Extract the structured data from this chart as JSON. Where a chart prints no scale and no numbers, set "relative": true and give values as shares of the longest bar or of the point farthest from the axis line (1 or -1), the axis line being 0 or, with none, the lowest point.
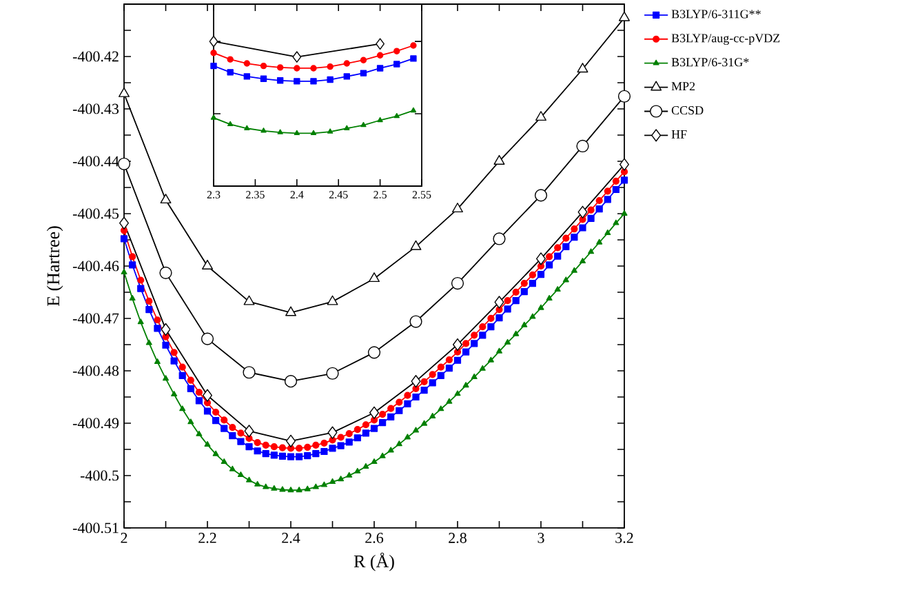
{
  "chart_data": [
    {
      "type": "line",
      "xlabel": "R (Å)",
      "ylabel": "E (Hartree)",
      "xlim": [
        2,
        3.2
      ],
      "ylim": [
        -400.51,
        -400.41
      ],
      "xticks": [
        2,
        {
          "value": 2.1,
          "label": null
        },
        2.2,
        {
          "value": 2.3,
          "label": null
        },
        2.4,
        {
          "value": 2.5,
          "label": null
        },
        2.6,
        {
          "value": 2.7,
          "label": null
        },
        2.8,
        {
          "value": 2.9,
          "label": null
        },
        3,
        {
          "value": 3.1,
          "label": null
        },
        3.2
      ],
      "yticks": [
        -400.51,
        {
          "value": -400.505,
          "label": null
        },
        -400.5,
        {
          "value": -400.495,
          "label": null
        },
        -400.49,
        {
          "value": -400.485,
          "label": null
        },
        -400.48,
        {
          "value": -400.475,
          "label": null
        },
        -400.47,
        {
          "value": -400.465,
          "label": null
        },
        -400.46,
        {
          "value": -400.455,
          "label": null
        },
        -400.45,
        {
          "value": -400.445,
          "label": null
        },
        -400.44,
        {
          "value": -400.435,
          "label": null
        },
        -400.43,
        {
          "value": -400.425,
          "label": null
        },
        -400.42,
        {
          "value": -400.415,
          "label": null
        }
      ],
      "legend": "top right",
      "grid": false,
      "line_style": "solid",
      "x": [
        2.0,
        2.02,
        2.04,
        2.06,
        2.08,
        2.1,
        2.12,
        2.14,
        2.16,
        2.18,
        2.2,
        2.22,
        2.24,
        2.26,
        2.28,
        2.3,
        2.32,
        2.34,
        2.36,
        2.38,
        2.4,
        2.42,
        2.44,
        2.46,
        2.48,
        2.5,
        2.52,
        2.54,
        2.56,
        2.58,
        2.6,
        2.62,
        2.64,
        2.66,
        2.68,
        2.7,
        2.72,
        2.74,
        2.76,
        2.78,
        2.8,
        2.82,
        2.84,
        2.86,
        2.88,
        2.9,
        2.92,
        2.94,
        2.96,
        2.98,
        3.0,
        3.02,
        3.04,
        3.06,
        3.08,
        3.1,
        3.12,
        3.14,
        3.16,
        3.18,
        3.2
      ],
      "series": [
        {
          "name": "B3LYP/6-311G**",
          "color": "#0000ff",
          "marker": "square",
          "values": [
            -400.4548,
            -400.4598,
            -400.4643,
            -400.4683,
            -400.4719,
            -400.4751,
            -400.4781,
            -400.4809,
            -400.4834,
            -400.4857,
            -400.4877,
            -400.4895,
            -400.491,
            -400.4924,
            -400.4935,
            -400.4945,
            -400.4953,
            -400.4958,
            -400.4961,
            -400.4963,
            -400.4964,
            -400.4964,
            -400.4962,
            -400.4958,
            -400.4954,
            -400.4948,
            -400.4943,
            -400.4936,
            -400.4928,
            -400.4919,
            -400.491,
            -400.4899,
            -400.4888,
            -400.4876,
            -400.4863,
            -400.485,
            -400.4837,
            -400.4823,
            -400.4809,
            -400.4795,
            -400.478,
            -400.4764,
            -400.4748,
            -400.4732,
            -400.4716,
            -400.4699,
            -400.4682,
            -400.4666,
            -400.4649,
            -400.4633,
            -400.4616,
            -400.4598,
            -400.4581,
            -400.4563,
            -400.4545,
            -400.4527,
            -400.4509,
            -400.4491,
            -400.4473,
            -400.4454,
            -400.4436
          ]
        },
        {
          "name": "B3LYP/aug-cc-pVDZ",
          "color": "#ff0000",
          "marker": "circle",
          "values": [
            -400.4532,
            -400.4582,
            -400.4627,
            -400.4667,
            -400.4703,
            -400.4735,
            -400.4765,
            -400.4793,
            -400.4818,
            -400.4841,
            -400.4861,
            -400.4879,
            -400.4894,
            -400.4908,
            -400.4919,
            -400.4929,
            -400.4937,
            -400.4942,
            -400.4945,
            -400.4947,
            -400.4948,
            -400.4948,
            -400.4946,
            -400.4942,
            -400.4938,
            -400.4932,
            -400.4927,
            -400.492,
            -400.4912,
            -400.4903,
            -400.4894,
            -400.4883,
            -400.4872,
            -400.486,
            -400.4847,
            -400.4834,
            -400.4821,
            -400.4807,
            -400.4793,
            -400.4779,
            -400.4764,
            -400.4748,
            -400.4732,
            -400.4716,
            -400.47,
            -400.4683,
            -400.4666,
            -400.465,
            -400.4633,
            -400.4617,
            -400.46,
            -400.4582,
            -400.4565,
            -400.4547,
            -400.4529,
            -400.4511,
            -400.4493,
            -400.4475,
            -400.4457,
            -400.4438,
            -400.442
          ]
        },
        {
          "name": "B3LYP/6-31G*",
          "color": "#008000",
          "marker": "triangle",
          "values": [
            -400.4612,
            -400.4662,
            -400.4707,
            -400.4747,
            -400.4783,
            -400.4815,
            -400.4845,
            -400.4873,
            -400.4898,
            -400.4921,
            -400.4941,
            -400.4959,
            -400.4974,
            -400.4988,
            -400.4999,
            -400.5009,
            -400.5017,
            -400.5022,
            -400.5025,
            -400.5027,
            -400.5028,
            -400.5028,
            -400.5026,
            -400.5022,
            -400.5018,
            -400.5012,
            -400.5007,
            -400.5,
            -400.4992,
            -400.4983,
            -400.4974,
            -400.4963,
            -400.4952,
            -400.494,
            -400.4927,
            -400.4914,
            -400.4901,
            -400.4887,
            -400.4873,
            -400.4859,
            -400.4844,
            -400.4828,
            -400.4812,
            -400.4796,
            -400.478,
            -400.4763,
            -400.4746,
            -400.473,
            -400.4713,
            -400.4697,
            -400.468,
            -400.4662,
            -400.4645,
            -400.4627,
            -400.4609,
            -400.4591,
            -400.4573,
            -400.4555,
            -400.4537,
            -400.4518,
            -400.45
          ]
        },
        {
          "name": "MP2",
          "color": "#000000",
          "marker": "triangle",
          "x": [
            2.0,
            2.1,
            2.2,
            2.3,
            2.4,
            2.5,
            2.6,
            2.7,
            2.8,
            2.9,
            3.0,
            3.1,
            3.2
          ],
          "values": [
            -400.4271,
            -400.4474,
            -400.46,
            -400.4668,
            -400.4689,
            -400.4668,
            -400.4624,
            -400.4563,
            -400.4491,
            -400.44,
            -400.4316,
            -400.4224,
            -400.4126
          ]
        },
        {
          "name": "CCSD",
          "color": "#000000",
          "marker": "circle",
          "x": [
            2.0,
            2.1,
            2.2,
            2.3,
            2.4,
            2.5,
            2.6,
            2.7,
            2.8,
            2.9,
            3.0,
            3.1,
            3.2
          ],
          "values": [
            -400.4405,
            -400.4613,
            -400.4739,
            -400.4803,
            -400.482,
            -400.4805,
            -400.4765,
            -400.4706,
            -400.4633,
            -400.4548,
            -400.4465,
            -400.4371,
            -400.4276
          ]
        },
        {
          "name": "HF",
          "color": "#000000",
          "marker": "diamond",
          "x": [
            2.0,
            2.1,
            2.2,
            2.3,
            2.4,
            2.5,
            2.6,
            2.7,
            2.8,
            2.9,
            3.0,
            3.1,
            3.2
          ],
          "values": [
            -400.4518,
            -400.4721,
            -400.4847,
            -400.4915,
            -400.4934,
            -400.4918,
            -400.488,
            -400.482,
            -400.475,
            -400.4669,
            -400.4586,
            -400.4497,
            -400.4406
          ]
        }
      ]
    },
    {
      "type": "line",
      "relative": true,
      "xlim": [
        2.3,
        2.55
      ],
      "tick_labels": "x",
      "grid": false,
      "legend": false,
      "line_style": "solid",
      "xticks": [
        2.3,
        2.35,
        2.4,
        2.45,
        2.5,
        2.55
      ],
      "x": [
        2.3,
        2.32,
        2.34,
        2.36,
        2.38,
        2.4,
        2.42,
        2.44,
        2.46,
        2.48,
        2.5,
        2.52,
        2.54
      ],
      "series": [
        {
          "color": "#0000ff",
          "marker": "square",
          "values": [
            0.831,
            0.787,
            0.758,
            0.742,
            0.73,
            0.725,
            0.725,
            0.736,
            0.758,
            0.781,
            0.815,
            0.843,
            0.882
          ]
        },
        {
          "color": "#ff0000",
          "marker": "circle",
          "values": [
            0.921,
            0.876,
            0.848,
            0.831,
            0.82,
            0.815,
            0.815,
            0.826,
            0.848,
            0.871,
            0.904,
            0.933,
            0.972
          ]
        },
        {
          "color": "#008000",
          "marker": "triangle",
          "values": [
            0.472,
            0.427,
            0.399,
            0.382,
            0.371,
            0.365,
            0.365,
            0.376,
            0.399,
            0.421,
            0.455,
            0.483,
            0.522
          ]
        },
        {
          "color": "#000000",
          "marker": "diamond",
          "x": [
            2.3,
            2.4,
            2.5
          ],
          "values": [
            1,
            0.893,
            0.983
          ]
        }
      ]
    }
  ]
}
